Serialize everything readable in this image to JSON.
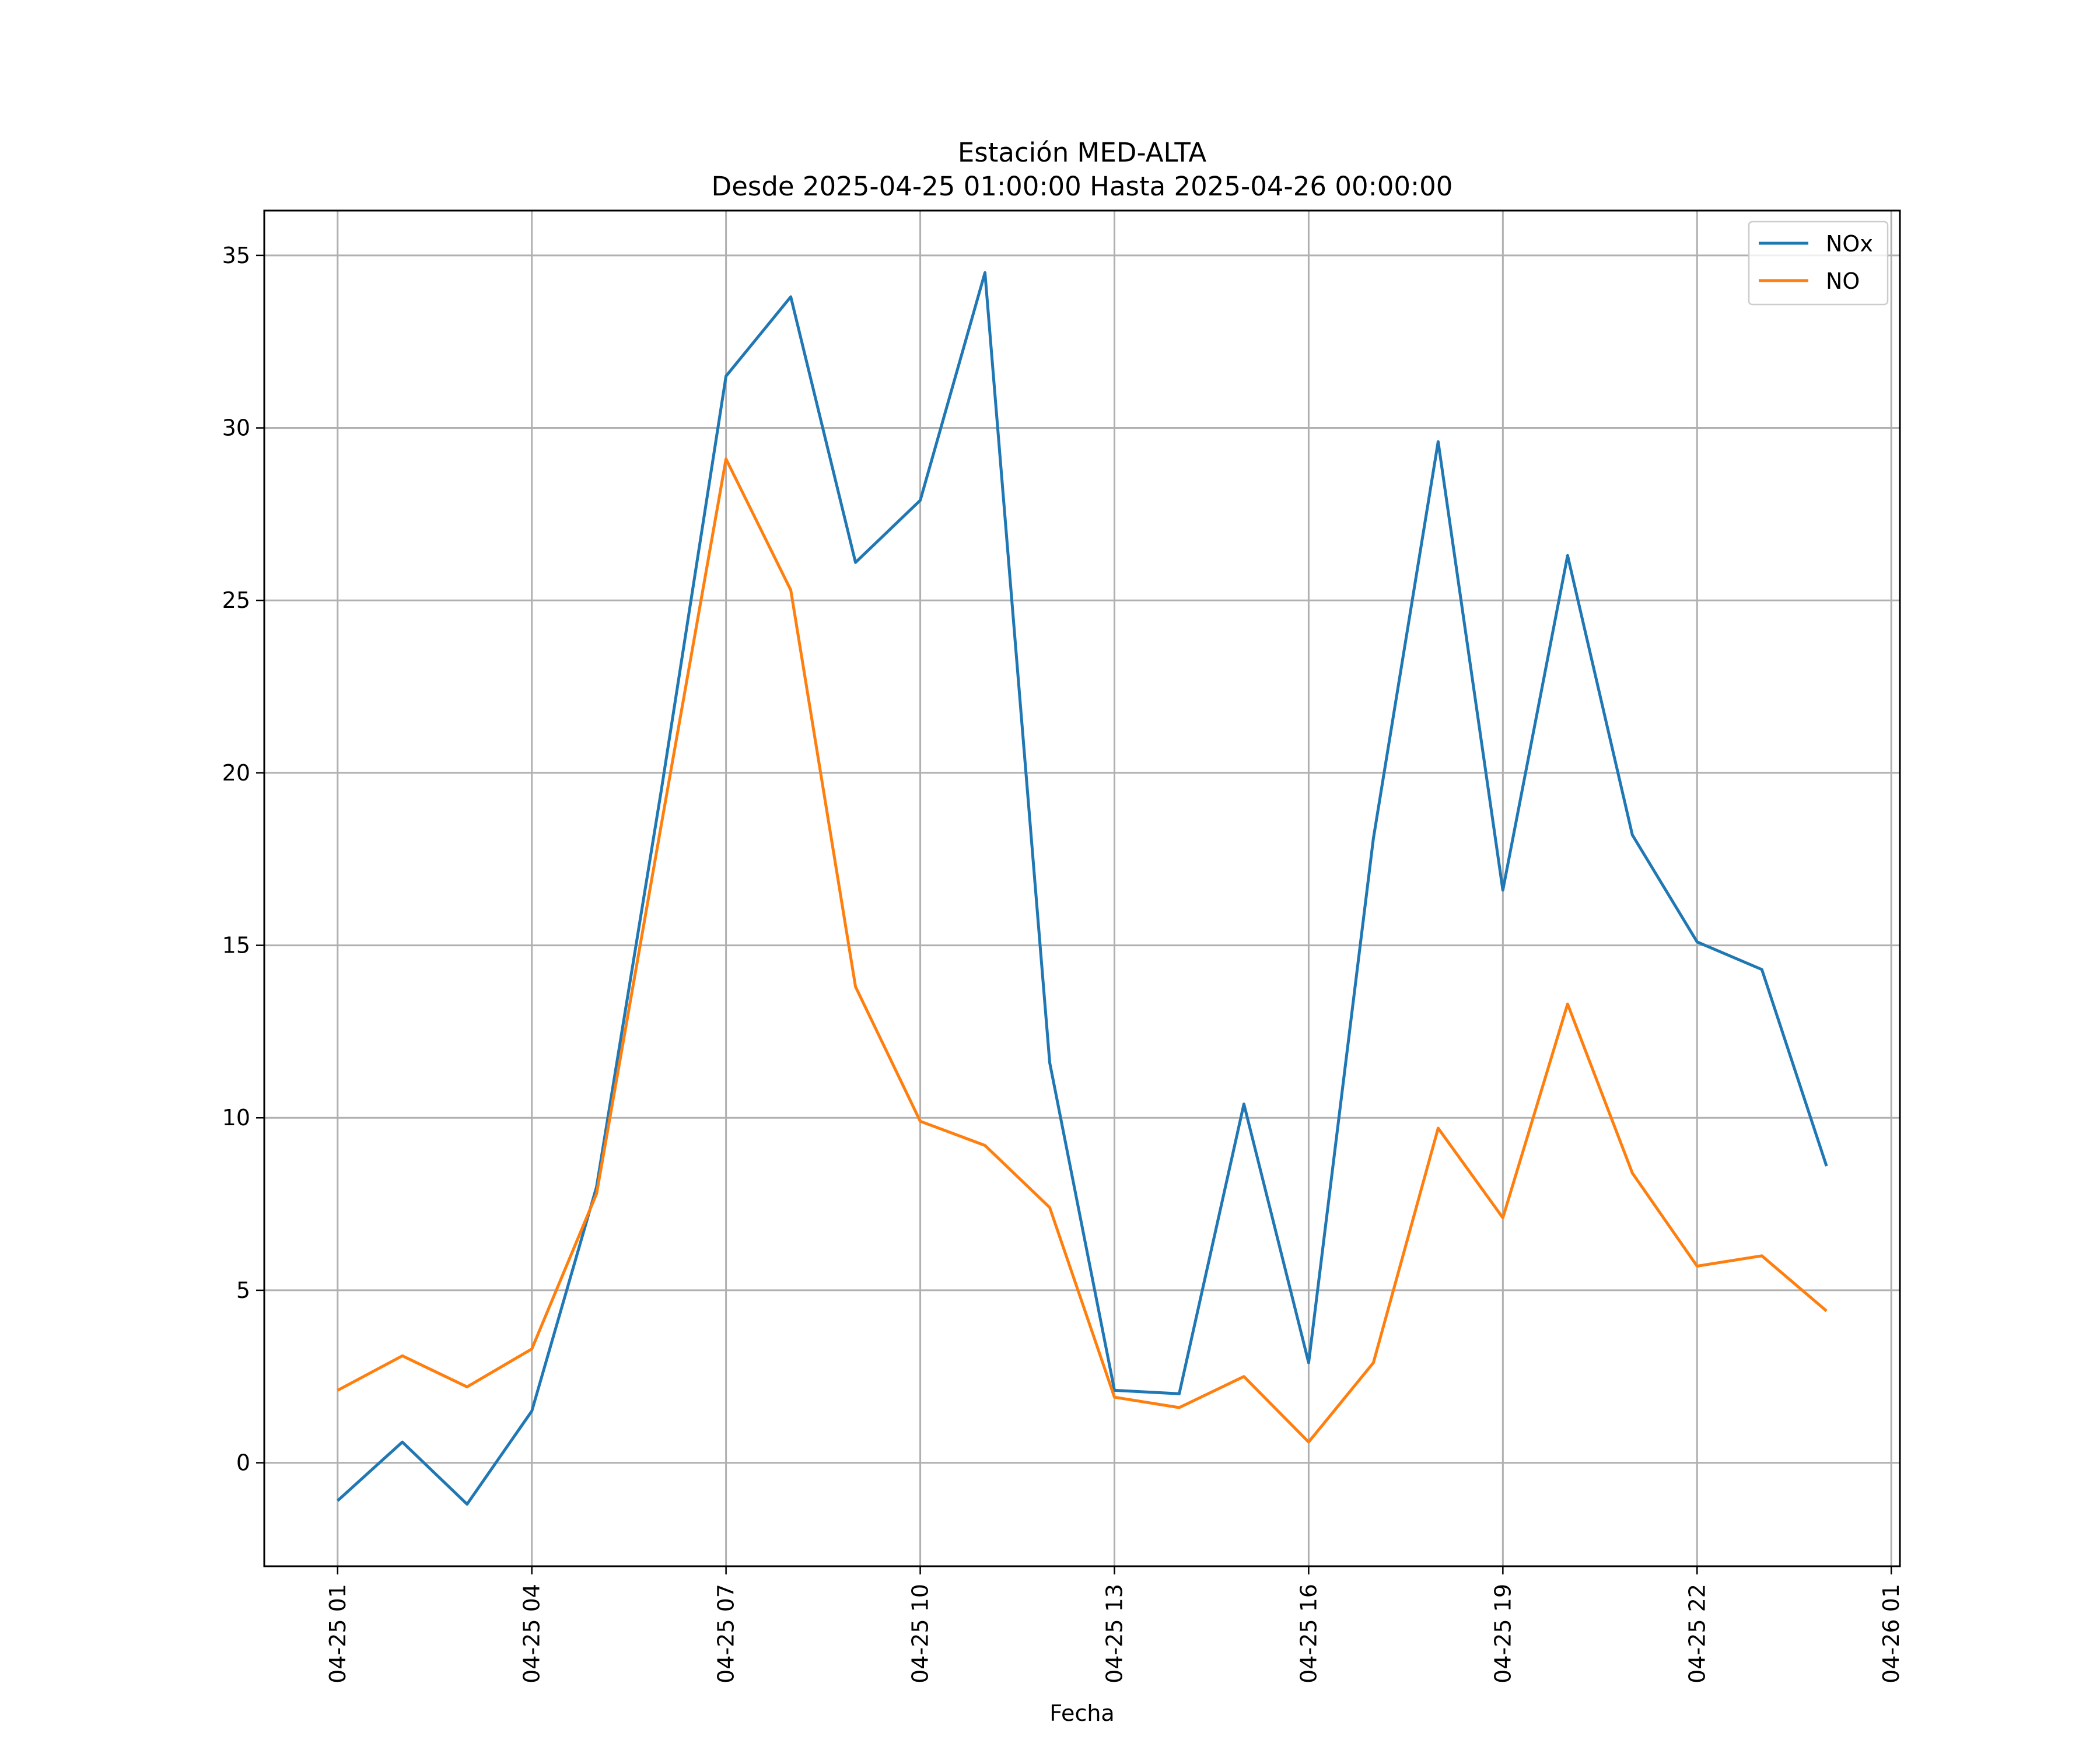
{
  "chart_data": {
    "type": "line",
    "title": "Estación MED-ALTA",
    "subtitle": "Desde 2025-04-25 01:00:00 Hasta 2025-04-26 00:00:00",
    "xlabel": "Fecha",
    "ylabel": "",
    "x": [
      "04-25 01",
      "04-25 02",
      "04-25 03",
      "04-25 04",
      "04-25 05",
      "04-25 06",
      "04-25 07",
      "04-25 08",
      "04-25 09",
      "04-25 10",
      "04-25 11",
      "04-25 12",
      "04-25 13",
      "04-25 14",
      "04-25 15",
      "04-25 16",
      "04-25 17",
      "04-25 18",
      "04-25 19",
      "04-25 20",
      "04-25 21",
      "04-25 22",
      "04-25 23",
      "04-26 00"
    ],
    "xlim": [
      "04-24 23:52",
      "04-26 01:08"
    ],
    "x_ticks": [
      "04-25 01",
      "04-25 04",
      "04-25 07",
      "04-25 10",
      "04-25 13",
      "04-25 16",
      "04-25 19",
      "04-25 22",
      "04-26 01"
    ],
    "ylim": [
      -3,
      36.3
    ],
    "y_ticks": [
      0,
      5,
      10,
      15,
      20,
      25,
      30,
      35
    ],
    "grid": true,
    "legend_position": "top-right",
    "series": [
      {
        "name": "NOx",
        "color": "#1f77b4",
        "values": [
          -1.1,
          0.6,
          -1.2,
          1.5,
          8.0,
          19.5,
          31.5,
          33.8,
          26.1,
          27.9,
          34.5,
          11.6,
          2.1,
          2.0,
          10.4,
          2.9,
          18.1,
          29.6,
          16.6,
          26.3,
          18.2,
          15.1,
          14.3,
          8.6
        ]
      },
      {
        "name": "NO",
        "color": "#ff7f0e",
        "values": [
          2.1,
          3.1,
          2.2,
          3.3,
          7.8,
          18.5,
          29.1,
          25.3,
          13.8,
          9.9,
          9.2,
          7.4,
          1.9,
          1.6,
          2.5,
          0.6,
          2.9,
          9.7,
          7.1,
          13.3,
          8.4,
          5.7,
          6.0,
          4.4
        ]
      }
    ]
  }
}
